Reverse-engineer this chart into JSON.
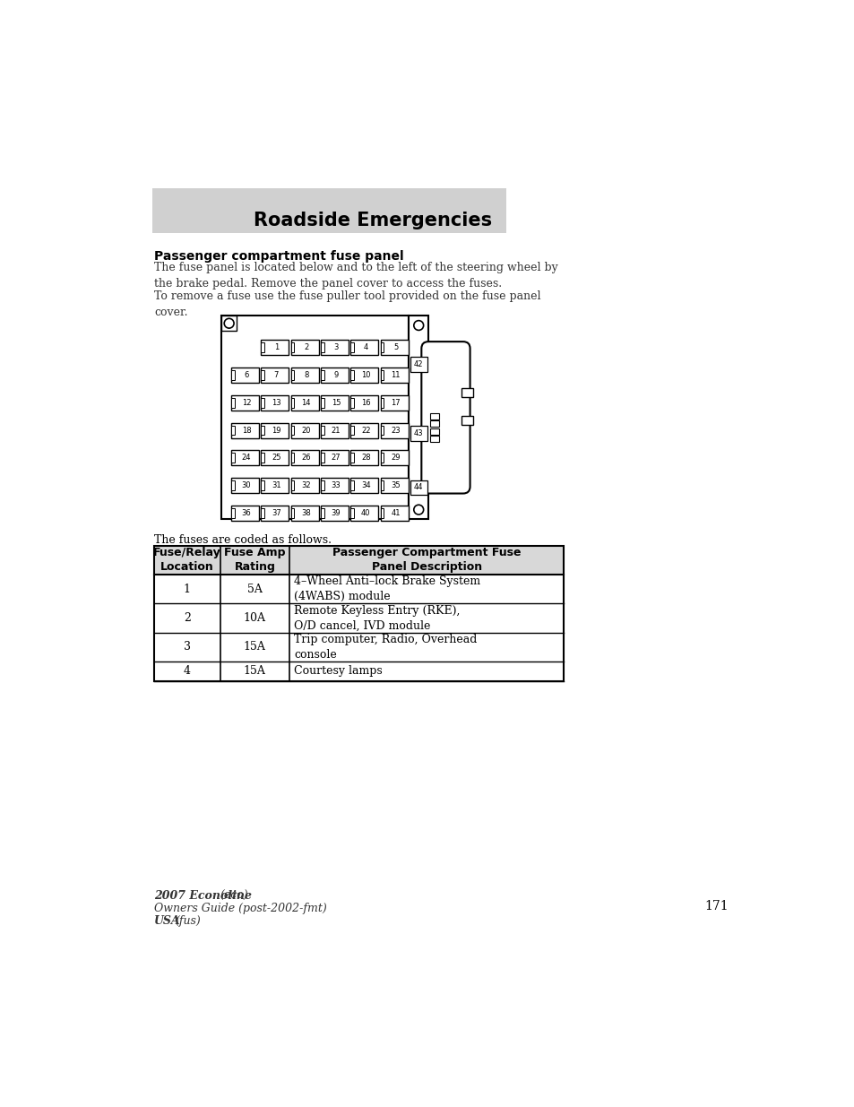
{
  "title": "Roadside Emergencies",
  "title_bg": "#d0d0d0",
  "section_heading": "Passenger compartment fuse panel",
  "para1": "The fuse panel is located below and to the left of the steering wheel by\nthe brake pedal. Remove the panel cover to access the fuses.",
  "para2": "To remove a fuse use the fuse puller tool provided on the fuse panel\ncover.",
  "fuse_coded_text": "The fuses are coded as follows.",
  "table_headers": [
    "Fuse/Relay\nLocation",
    "Fuse Amp\nRating",
    "Passenger Compartment Fuse\nPanel Description"
  ],
  "table_rows": [
    [
      "1",
      "5A",
      "4–Wheel Anti–lock Brake System\n(4WABS) module"
    ],
    [
      "2",
      "10A",
      "Remote Keyless Entry (RKE),\nO/D cancel, IVD module"
    ],
    [
      "3",
      "15A",
      "Trip computer, Radio, Overhead\nconsole"
    ],
    [
      "4",
      "15A",
      "Courtesy lamps"
    ]
  ],
  "page_number": "171",
  "footer_line1": "2007 Econoline",
  "footer_line1_italic": " (eco)",
  "footer_line2": "Owners Guide (post-2002-fmt)",
  "footer_line3": "USA",
  "footer_line3_italic": " (fus)",
  "fuse_rows": [
    [
      null,
      "1",
      "2",
      "3",
      "4",
      "5"
    ],
    [
      "6",
      "7",
      "8",
      "9",
      "10",
      "11"
    ],
    [
      "12",
      "13",
      "14",
      "15",
      "16",
      "17"
    ],
    [
      "18",
      "19",
      "20",
      "21",
      "22",
      "23"
    ],
    [
      "24",
      "25",
      "26",
      "27",
      "28",
      "29"
    ],
    [
      "30",
      "31",
      "32",
      "33",
      "34",
      "35"
    ],
    [
      "36",
      "37",
      "38",
      "39",
      "40",
      "41"
    ]
  ]
}
